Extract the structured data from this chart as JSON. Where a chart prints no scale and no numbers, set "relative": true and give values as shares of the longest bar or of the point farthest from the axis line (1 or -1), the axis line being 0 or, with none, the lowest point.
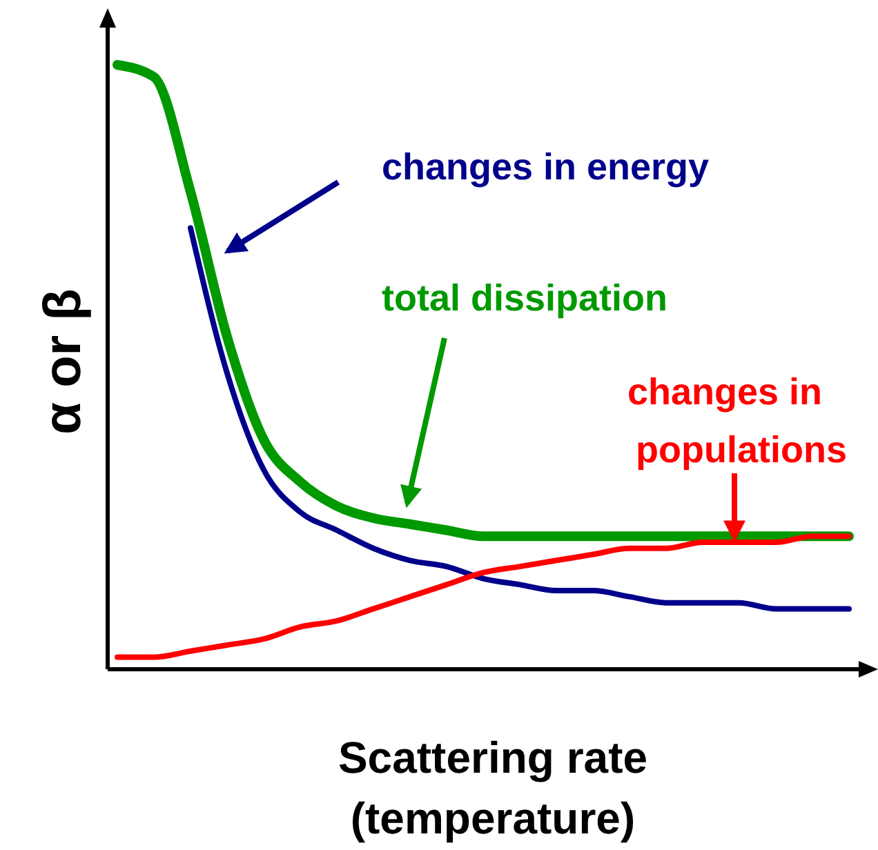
{
  "chart_data": {
    "type": "line",
    "relative": true,
    "xlabel": "Scattering rate\n(temperature)",
    "ylabel": "α or β",
    "categories": [
      null,
      null,
      null,
      null,
      null,
      null,
      null,
      null,
      null,
      null,
      null,
      null,
      null,
      null,
      null,
      null,
      null,
      null,
      null,
      null,
      null
    ],
    "series": [
      {
        "name": "changes in energy",
        "color": "#00008b",
        "values": [
          null,
          null,
          0.73,
          0.49,
          0.33,
          0.26,
          0.23,
          0.2,
          0.18,
          0.17,
          0.15,
          0.14,
          0.13,
          0.13,
          0.12,
          0.11,
          0.11,
          0.11,
          0.1,
          0.1,
          0.1
        ]
      },
      {
        "name": "total dissipation",
        "color": "#009900",
        "values": [
          1.0,
          0.98,
          0.79,
          0.55,
          0.38,
          0.31,
          0.27,
          0.25,
          0.24,
          0.23,
          0.22,
          0.22,
          0.22,
          0.22,
          0.22,
          0.22,
          0.22,
          0.22,
          0.22,
          0.22,
          0.22
        ]
      },
      {
        "name": "changes in populations",
        "color": "#ff0000",
        "values": [
          0.02,
          0.02,
          0.03,
          0.04,
          0.05,
          0.07,
          0.08,
          0.1,
          0.12,
          0.14,
          0.16,
          0.17,
          0.18,
          0.19,
          0.2,
          0.2,
          0.21,
          0.21,
          0.21,
          0.22,
          0.22
        ]
      }
    ]
  }
}
